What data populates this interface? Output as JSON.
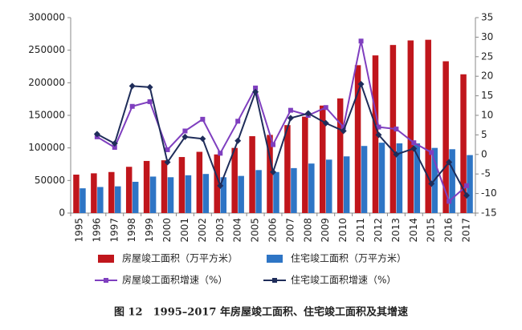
{
  "chart_data": {
    "type": "bar",
    "caption": "图 12　1995–2017 年房屋竣工面积、住宅竣工面积及其增速",
    "categories": [
      "1995",
      "1996",
      "1997",
      "1998",
      "1999",
      "2000",
      "2001",
      "2002",
      "2003",
      "2004",
      "2005",
      "2006",
      "2007",
      "2008",
      "2009",
      "2010",
      "2011",
      "2012",
      "2013",
      "2014",
      "2015",
      "2016",
      "2017"
    ],
    "series": [
      {
        "name": "房屋竣工面积（万平方米）",
        "type": "bar",
        "color": "#c0161c",
        "values": [
          59000,
          61000,
          63000,
          71000,
          80000,
          81000,
          86000,
          94000,
          90000,
          100000,
          118000,
          120000,
          135000,
          148000,
          165000,
          176000,
          227000,
          242000,
          258000,
          265000,
          266000,
          233000,
          213000
        ]
      },
      {
        "name": "住宅竣工面积（万平方米）",
        "type": "bar",
        "color": "#2e75c5",
        "values": [
          38000,
          40000,
          41000,
          48000,
          56000,
          55000,
          58000,
          60000,
          55000,
          57000,
          66000,
          63000,
          69000,
          76000,
          82000,
          87000,
          103000,
          108000,
          107000,
          107000,
          100000,
          98000,
          89000
        ]
      },
      {
        "name": "房屋竣工面积增速（%）",
        "type": "line",
        "axis": "y2",
        "color": "#7f3fbf",
        "marker": "square",
        "values": [
          null,
          4.5,
          1.8,
          12.3,
          13.5,
          1.2,
          6,
          9,
          0.3,
          8.5,
          17,
          2.5,
          11.3,
          10,
          12,
          7,
          29,
          7,
          6.5,
          3,
          0.5,
          -12,
          -8
        ]
      },
      {
        "name": "住宅竣工面积增速（%）",
        "type": "line",
        "axis": "y2",
        "color": "#1f2d5a",
        "marker": "diamond",
        "values": [
          null,
          5.2,
          2.8,
          17.5,
          17.2,
          -2,
          4.5,
          4,
          -8,
          3.5,
          16,
          -4.5,
          9.3,
          10.5,
          8,
          6,
          18,
          5,
          0,
          1.5,
          -7.5,
          -2,
          -10.5
        ]
      }
    ],
    "ylim": [
      0,
      300000
    ],
    "yticks": [
      0,
      50000,
      100000,
      150000,
      200000,
      250000,
      300000
    ],
    "y2lim": [
      -15,
      35
    ],
    "y2ticks": [
      -15,
      -10,
      -5,
      0,
      5,
      10,
      15,
      20,
      25,
      30,
      35
    ],
    "grid": false,
    "legend": "bottom"
  }
}
